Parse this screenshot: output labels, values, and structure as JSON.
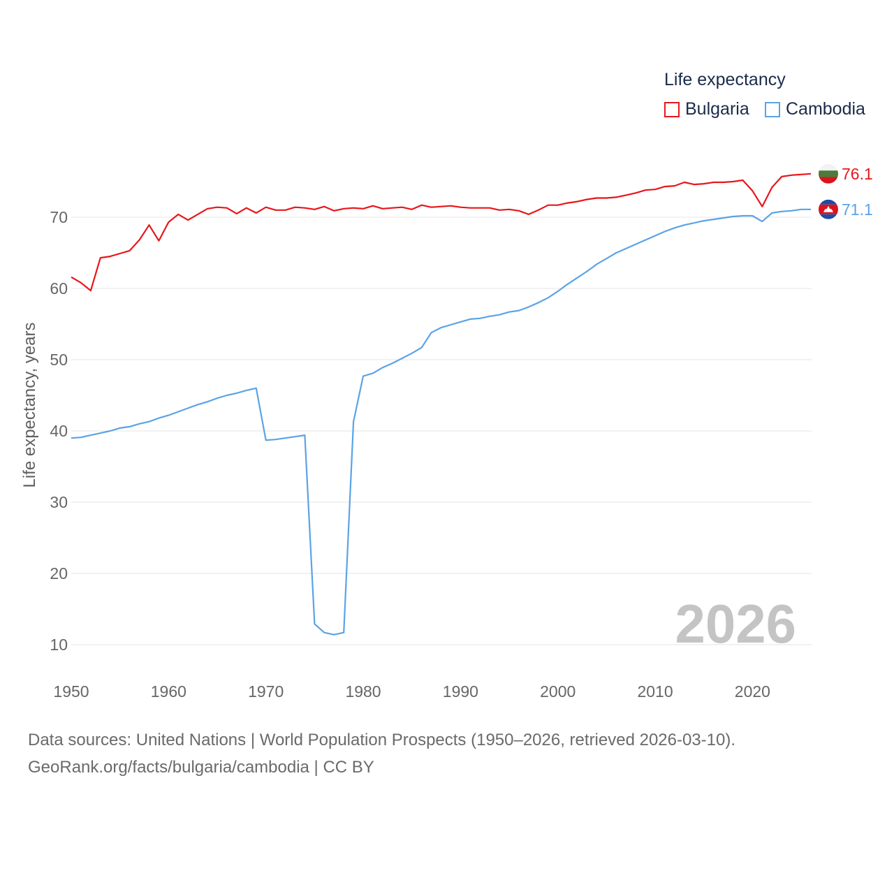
{
  "legend": {
    "title": "Life expectancy",
    "items": [
      {
        "label": "Bulgaria",
        "color": "#e8161b"
      },
      {
        "label": "Cambodia",
        "color": "#5ba3e6"
      }
    ]
  },
  "year_watermark": "2026",
  "footer": {
    "line1": "Data sources: United Nations | World Population Prospects (1950–2026, retrieved 2026-03-10).",
    "line2": "GeoRank.org/facts/bulgaria/cambodia | CC BY"
  },
  "chart_data": {
    "type": "line",
    "title": "Life expectancy",
    "xlabel": "",
    "ylabel": "Life expectancy, years",
    "xlim": [
      1950,
      2026
    ],
    "ylim": [
      6,
      83
    ],
    "grid": true,
    "legend_position": "top-right",
    "x_ticks": [
      1950,
      1960,
      1970,
      1980,
      1990,
      2000,
      2010,
      2020
    ],
    "y_ticks": [
      10,
      20,
      30,
      40,
      50,
      60,
      70
    ],
    "series": [
      {
        "name": "Bulgaria",
        "color": "#e8161b",
        "icon": "bulgaria-flag-icon",
        "end_label": "76.1",
        "start_year": 1950,
        "values": [
          61.6,
          60.8,
          59.7,
          64.3,
          64.5,
          64.9,
          65.3,
          66.8,
          68.9,
          66.7,
          69.3,
          70.4,
          69.6,
          70.4,
          71.2,
          71.4,
          71.3,
          70.5,
          71.3,
          70.6,
          71.4,
          71.0,
          71.0,
          71.4,
          71.3,
          71.1,
          71.5,
          70.9,
          71.2,
          71.3,
          71.2,
          71.6,
          71.2,
          71.3,
          71.4,
          71.1,
          71.7,
          71.4,
          71.5,
          71.6,
          71.4,
          71.3,
          71.3,
          71.3,
          71.0,
          71.1,
          70.9,
          70.4,
          71.0,
          71.7,
          71.7,
          72.0,
          72.2,
          72.5,
          72.7,
          72.7,
          72.8,
          73.1,
          73.4,
          73.8,
          73.9,
          74.3,
          74.4,
          74.9,
          74.6,
          74.7,
          74.9,
          74.9,
          75.0,
          75.2,
          73.7,
          71.5,
          74.2,
          75.7,
          75.9,
          76.0,
          76.1
        ]
      },
      {
        "name": "Cambodia",
        "color": "#5ba3e6",
        "icon": "cambodia-flag-icon",
        "end_label": "71.1",
        "start_year": 1950,
        "values": [
          39.0,
          39.1,
          39.4,
          39.7,
          40.0,
          40.4,
          40.6,
          41.0,
          41.3,
          41.8,
          42.2,
          42.7,
          43.2,
          43.7,
          44.1,
          44.6,
          45.0,
          45.3,
          45.7,
          46.0,
          38.7,
          38.8,
          39.0,
          39.2,
          39.4,
          12.9,
          11.7,
          11.4,
          11.7,
          41.3,
          47.7,
          48.1,
          48.9,
          49.5,
          50.2,
          50.9,
          51.7,
          53.8,
          54.5,
          54.9,
          55.3,
          55.7,
          55.8,
          56.1,
          56.3,
          56.7,
          56.9,
          57.4,
          58.0,
          58.7,
          59.6,
          60.6,
          61.5,
          62.4,
          63.4,
          64.2,
          65.0,
          65.6,
          66.2,
          66.8,
          67.4,
          68.0,
          68.5,
          68.9,
          69.2,
          69.5,
          69.7,
          69.9,
          70.1,
          70.2,
          70.2,
          69.4,
          70.6,
          70.8,
          70.9,
          71.1,
          71.1
        ]
      }
    ]
  }
}
